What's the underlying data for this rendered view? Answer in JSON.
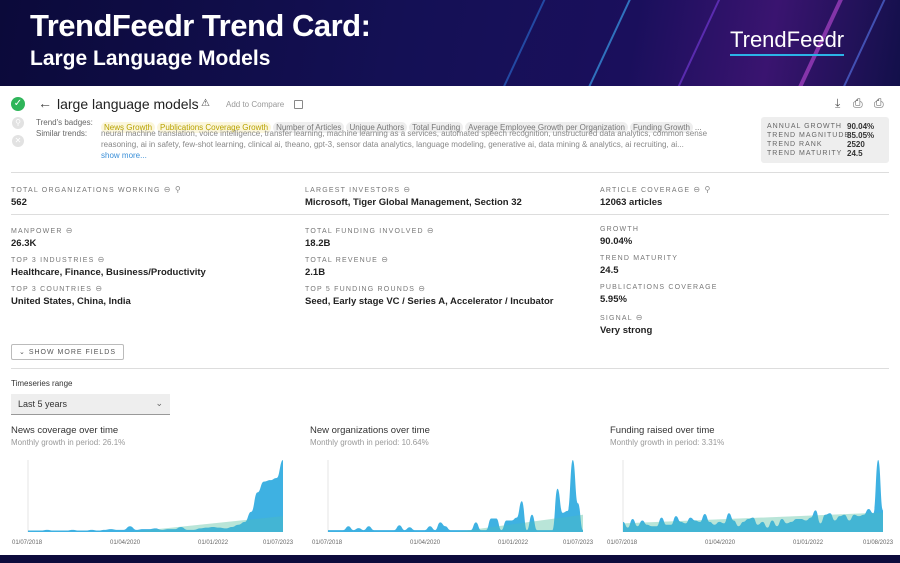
{
  "banner": {
    "title": "TrendFeedr Trend Card:",
    "subtitle": "Large Language Models",
    "logo": "TrendFeedr"
  },
  "header": {
    "trend_name": "large language models",
    "add_to_compare": "Add to Compare",
    "badges_label": "Trend's badges:",
    "similar_label": "Similar trends:",
    "badges": [
      {
        "label": "News Growth",
        "highlight": true
      },
      {
        "label": "Publications Coverage Growth",
        "highlight": true
      },
      {
        "label": "Number of Articles",
        "highlight": false
      },
      {
        "label": "Unique Authors",
        "highlight": false
      },
      {
        "label": "Total Funding",
        "highlight": false
      },
      {
        "label": "Average Employee Growth per Organization",
        "highlight": false
      },
      {
        "label": "Funding Growth",
        "highlight": false
      }
    ],
    "badges_more": "...",
    "similar_line1": "neural machine translation, voice intelligence, transfer learning, machine learning as a services, automated speech recognition, unstructured data analytics, common sense",
    "similar_line2": "reasoning, ai in safety, few-shot learning, clinical ai, theano, gpt-3, sensor data analytics, language modeling, generative ai, data mining & analytics, ai recruiting, ai...",
    "show_more": "show more...",
    "icons": [
      "check-circle-icon",
      "search-circle-icon",
      "close-circle-icon",
      "back-arrow-icon",
      "warning-icon",
      "download-icon",
      "print-pdf-icon",
      "print-csv-icon"
    ]
  },
  "stats": [
    {
      "k": "ANNUAL GROWTH",
      "v": "90.04%"
    },
    {
      "k": "TREND MAGNITUDE",
      "v": "85.05%"
    },
    {
      "k": "TREND RANK",
      "v": "2520"
    },
    {
      "k": "TREND MATURITY",
      "v": "24.5"
    }
  ],
  "fields": {
    "total_orgs": {
      "label": "Total Organizations Working",
      "value": "562"
    },
    "largest_investors": {
      "label": "Largest Investors",
      "value": "Microsoft, Tiger Global Management, Section 32"
    },
    "article_coverage": {
      "label": "Article Coverage",
      "value": "12063 articles"
    },
    "manpower": {
      "label": "Manpower",
      "value": "26.3K"
    },
    "top_industries": {
      "label": "Top 3 Industries",
      "value": "Healthcare, Finance, Business/Productivity"
    },
    "top_countries": {
      "label": "Top 3 Countries",
      "value": "United States, China, India"
    },
    "total_funding": {
      "label": "Total Funding Involved",
      "value": "18.2B"
    },
    "total_revenue": {
      "label": "Total Revenue",
      "value": "2.1B"
    },
    "funding_rounds": {
      "label": "Top 5 Funding Rounds",
      "value": "Seed, Early stage VC / Series A, Accelerator / Incubator"
    },
    "growth": {
      "label": "Growth",
      "value": "90.04%"
    },
    "maturity": {
      "label": "Trend Maturity",
      "value": "24.5"
    },
    "pub_coverage": {
      "label": "Publications Coverage",
      "value": "5.95%"
    },
    "signal": {
      "label": "Signal",
      "value": "Very strong"
    }
  },
  "show_more_fields": "SHOW MORE FIELDS",
  "timeseries": {
    "label": "Timeseries range",
    "selected": "Last 5 years"
  },
  "colors": {
    "area": "#29a8df",
    "trend": "#cfeee0",
    "banner": "#0f0c45"
  },
  "chart_data": [
    {
      "type": "area",
      "title": "News coverage over time",
      "subtitle": "Monthly growth in period: 26.1%",
      "xticks": [
        "01/07/2018",
        "01/04/2020",
        "01/01/2022",
        "01/07/2023"
      ],
      "values": [
        2,
        2,
        2,
        3,
        2,
        2,
        2,
        3,
        2,
        2,
        3,
        2,
        3,
        4,
        3,
        3,
        8,
        3,
        4,
        4,
        5,
        3,
        4,
        4,
        7,
        3,
        3,
        5,
        6,
        7,
        6,
        5,
        7,
        10,
        14,
        28,
        55,
        70,
        72,
        75,
        100
      ],
      "trend": [
        0,
        22
      ],
      "trend_start": 0.4,
      "grid": false
    },
    {
      "type": "area",
      "title": "New organizations over time",
      "subtitle": "Monthly growth in period: 10.64%",
      "xticks": [
        "01/07/2018",
        "01/04/2020",
        "01/01/2022",
        "01/07/2023"
      ],
      "values": [
        2,
        2,
        2,
        2,
        6,
        2,
        4,
        2,
        6,
        2,
        2,
        2,
        2,
        2,
        7,
        2,
        5,
        2,
        2,
        2,
        6,
        2,
        10,
        6,
        2,
        2,
        2,
        2,
        2,
        10,
        2,
        2,
        14,
        14,
        2,
        12,
        12,
        15,
        32,
        2,
        18,
        2,
        2,
        2,
        2,
        45,
        20,
        22,
        75,
        30,
        2
      ],
      "trend": [
        0,
        18
      ],
      "trend_start": 0.5,
      "grid": false
    },
    {
      "type": "area",
      "title": "Funding raised over time",
      "subtitle": "Monthly growth in period: 3.31%",
      "xticks": [
        "01/07/2018",
        "01/04/2020",
        "01/01/2022",
        "01/08/2023"
      ],
      "values": [
        14,
        6,
        18,
        8,
        16,
        10,
        8,
        8,
        20,
        10,
        10,
        22,
        14,
        12,
        20,
        16,
        14,
        25,
        14,
        10,
        14,
        12,
        26,
        16,
        8,
        14,
        18,
        20,
        10,
        14,
        6,
        16,
        8,
        18,
        12,
        14,
        18,
        18,
        16,
        20,
        30,
        12,
        24,
        26,
        16,
        22,
        24,
        16,
        24,
        22,
        24,
        32,
        26,
        100,
        30
      ],
      "trend": [
        12,
        27
      ],
      "trend_start": 0,
      "grid": false
    }
  ]
}
